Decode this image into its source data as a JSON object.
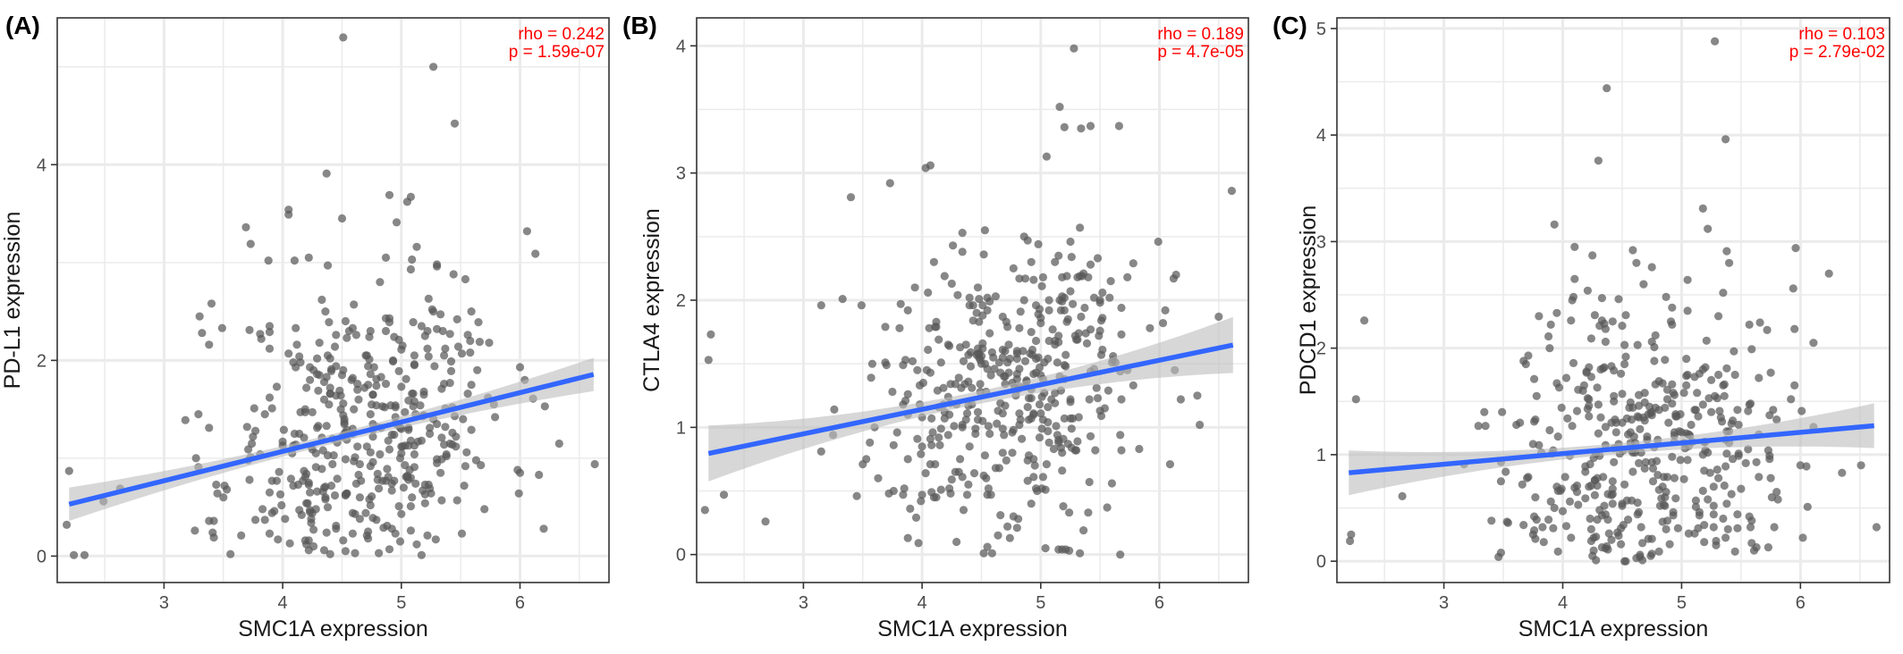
{
  "figure": {
    "background": "#ffffff",
    "grid_color": "#ebebeb",
    "point_color": "#595959",
    "line_color": "#3366ff",
    "band_color": "#bdbdbd",
    "stat_color": "#ff0000"
  },
  "chart_data": [
    {
      "type": "scatter",
      "panel_label": "(A)",
      "xlabel": "SMC1A expression",
      "ylabel": "PD-L1 expression",
      "xlim": [
        2.1,
        6.75
      ],
      "ylim": [
        -0.27,
        5.5
      ],
      "xticks": [
        3,
        4,
        5,
        6
      ],
      "yticks": [
        0,
        2,
        4
      ],
      "minor_x": [
        2.5,
        3.5,
        4.5,
        5.5,
        6.5
      ],
      "minor_y": [
        1,
        3,
        5
      ],
      "grid": true,
      "stat_lines": [
        "rho = 0.242",
        "p = 1.59e-07"
      ],
      "fit": {
        "intercept": -0.13,
        "slope": 0.3,
        "se_end": 0.17,
        "se_mid": 0.05,
        "xmin": 2.2,
        "xmax": 6.62
      },
      "points": [
        [
          2.2,
          0.87
        ],
        [
          2.18,
          0.32
        ],
        [
          2.24,
          0.01
        ],
        [
          2.33,
          0.01
        ],
        [
          2.49,
          0.56
        ],
        [
          2.63,
          0.69
        ],
        [
          3.18,
          1.39
        ],
        [
          3.3,
          2.45
        ],
        [
          3.4,
          2.58
        ],
        [
          3.27,
          1.0
        ],
        [
          3.45,
          0.64
        ],
        [
          3.73,
          3.19
        ],
        [
          3.88,
          3.02
        ],
        [
          4.05,
          3.49
        ],
        [
          4.05,
          3.54
        ],
        [
          4.22,
          3.05
        ],
        [
          4.5,
          3.45
        ],
        [
          4.51,
          5.3
        ],
        [
          4.9,
          3.69
        ],
        [
          5.05,
          3.62
        ],
        [
          5.08,
          3.67
        ],
        [
          5.27,
          5.0
        ],
        [
          5.45,
          4.42
        ],
        [
          5.3,
          2.98
        ],
        [
          6.13,
          3.09
        ],
        [
          6.63,
          0.94
        ],
        [
          6.2,
          0.28
        ],
        [
          4.37,
          3.91
        ],
        [
          4.96,
          3.41
        ]
      ],
      "n_random": 430,
      "seed": 11
    },
    {
      "type": "scatter",
      "panel_label": "(B)",
      "xlabel": "SMC1A expression",
      "ylabel": "CTLA4 expression",
      "xlim": [
        2.1,
        6.75
      ],
      "ylim": [
        -0.22,
        4.22
      ],
      "xticks": [
        3,
        4,
        5,
        6
      ],
      "yticks": [
        0,
        1,
        2,
        3,
        4
      ],
      "minor_x": [
        2.5,
        3.5,
        4.5,
        5.5,
        6.5
      ],
      "minor_y": [
        0.5,
        1.5,
        2.5,
        3.5
      ],
      "grid": true,
      "stat_lines": [
        "rho = 0.189",
        "p = 4.7e-05"
      ],
      "fit": {
        "intercept": 0.37,
        "slope": 0.193,
        "se_end": 0.22,
        "se_mid": 0.05,
        "xmin": 2.2,
        "xmax": 6.62
      },
      "points": [
        [
          2.22,
          1.73
        ],
        [
          2.2,
          1.53
        ],
        [
          2.17,
          0.35
        ],
        [
          2.33,
          0.47
        ],
        [
          2.68,
          0.26
        ],
        [
          3.15,
          1.96
        ],
        [
          3.4,
          2.81
        ],
        [
          3.73,
          2.92
        ],
        [
          4.03,
          3.04
        ],
        [
          4.07,
          3.06
        ],
        [
          5.05,
          3.13
        ],
        [
          5.16,
          3.52
        ],
        [
          5.28,
          3.98
        ],
        [
          5.2,
          3.36
        ],
        [
          5.34,
          3.35
        ],
        [
          5.42,
          3.37
        ],
        [
          5.66,
          3.37
        ],
        [
          6.61,
          2.86
        ],
        [
          6.5,
          1.87
        ],
        [
          6.34,
          1.02
        ],
        [
          5.33,
          0.01
        ],
        [
          5.67,
          0.0
        ]
      ],
      "n_random": 430,
      "seed": 23
    },
    {
      "type": "scatter",
      "panel_label": "(C)",
      "xlabel": "SMC1A expression",
      "ylabel": "PDCD1 expression",
      "xlim": [
        2.1,
        6.75
      ],
      "ylim": [
        -0.2,
        5.1
      ],
      "xticks": [
        3,
        4,
        5,
        6
      ],
      "yticks": [
        0,
        1,
        2,
        3,
        4,
        5
      ],
      "minor_x": [
        2.5,
        3.5,
        4.5,
        5.5,
        6.5
      ],
      "minor_y": [
        0.5,
        1.5,
        2.5,
        3.5,
        4.5
      ],
      "grid": true,
      "stat_lines": [
        "rho = 0.103",
        "p = 2.79e-02"
      ],
      "fit": {
        "intercept": 0.61,
        "slope": 0.1,
        "se_end": 0.21,
        "se_mid": 0.05,
        "xmin": 2.2,
        "xmax": 6.62
      },
      "points": [
        [
          2.21,
          0.19
        ],
        [
          2.22,
          0.25
        ],
        [
          2.26,
          1.52
        ],
        [
          2.33,
          2.26
        ],
        [
          2.65,
          0.61
        ],
        [
          3.17,
          0.91
        ],
        [
          3.29,
          1.27
        ],
        [
          3.8,
          2.3
        ],
        [
          3.93,
          3.16
        ],
        [
          4.1,
          2.95
        ],
        [
          4.25,
          2.87
        ],
        [
          4.37,
          4.44
        ],
        [
          4.3,
          3.76
        ],
        [
          4.62,
          2.8
        ],
        [
          5.18,
          3.31
        ],
        [
          5.22,
          3.12
        ],
        [
          5.28,
          4.88
        ],
        [
          5.37,
          3.96
        ],
        [
          5.4,
          2.8
        ],
        [
          6.11,
          2.05
        ],
        [
          6.24,
          2.7
        ],
        [
          6.64,
          0.32
        ],
        [
          6.51,
          0.9
        ],
        [
          6.35,
          0.83
        ]
      ],
      "n_random": 430,
      "seed": 37
    }
  ]
}
